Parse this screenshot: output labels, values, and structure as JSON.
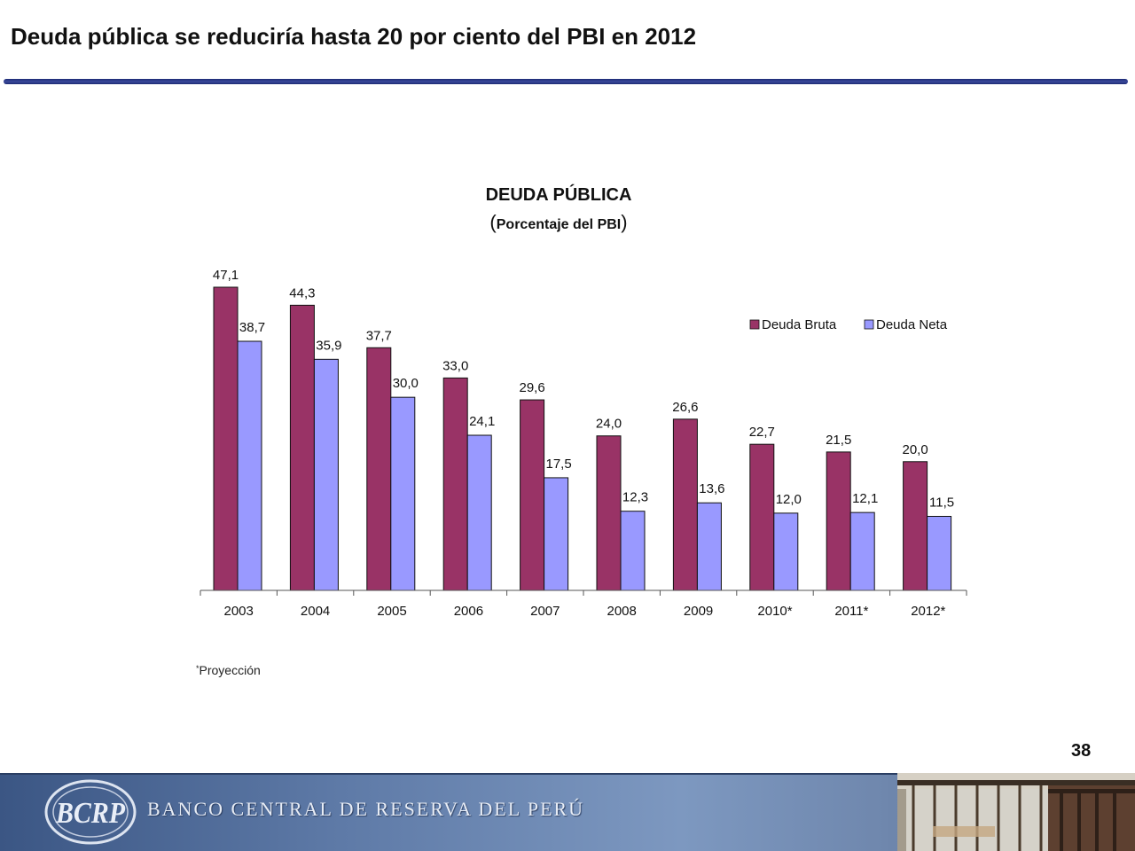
{
  "slide": {
    "title": "Deuda pública se reduciría hasta 20 por ciento del PBI en 2012",
    "page_number": "38"
  },
  "footer": {
    "bank_name": "BANCO CENTRAL DE RESERVA DEL PERÚ",
    "logo_monogram": "BCRP"
  },
  "chart_data": {
    "type": "bar",
    "title": "DEUDA PÚBLICA",
    "subtitle": "Porcentaje  del PBI",
    "categories": [
      "2003",
      "2004",
      "2005",
      "2006",
      "2007",
      "2008",
      "2009",
      "2010*",
      "2011*",
      "2012*"
    ],
    "series": [
      {
        "name": "Deuda Bruta",
        "color": "#993366",
        "values": [
          47.1,
          44.3,
          37.7,
          33.0,
          29.6,
          24.0,
          26.6,
          22.7,
          21.5,
          20.0
        ],
        "labels": [
          "47,1",
          "44,3",
          "37,7",
          "33,0",
          "29,6",
          "24,0",
          "26,6",
          "22,7",
          "21,5",
          "20,0"
        ]
      },
      {
        "name": "Deuda Neta",
        "color": "#9999ff",
        "values": [
          38.7,
          35.9,
          30.0,
          24.1,
          17.5,
          12.3,
          13.6,
          12.0,
          12.1,
          11.5
        ],
        "labels": [
          "38,7",
          "35,9",
          "30,0",
          "24,1",
          "17,5",
          "12,3",
          "13,6",
          "12,0",
          "12,1",
          "11,5"
        ]
      }
    ],
    "ylim": [
      0,
      50
    ],
    "xlabel": "",
    "ylabel": "",
    "grid": false,
    "legend_position": "top-right",
    "footnote": {
      "symbol": "*",
      "text": "Proyección"
    }
  }
}
